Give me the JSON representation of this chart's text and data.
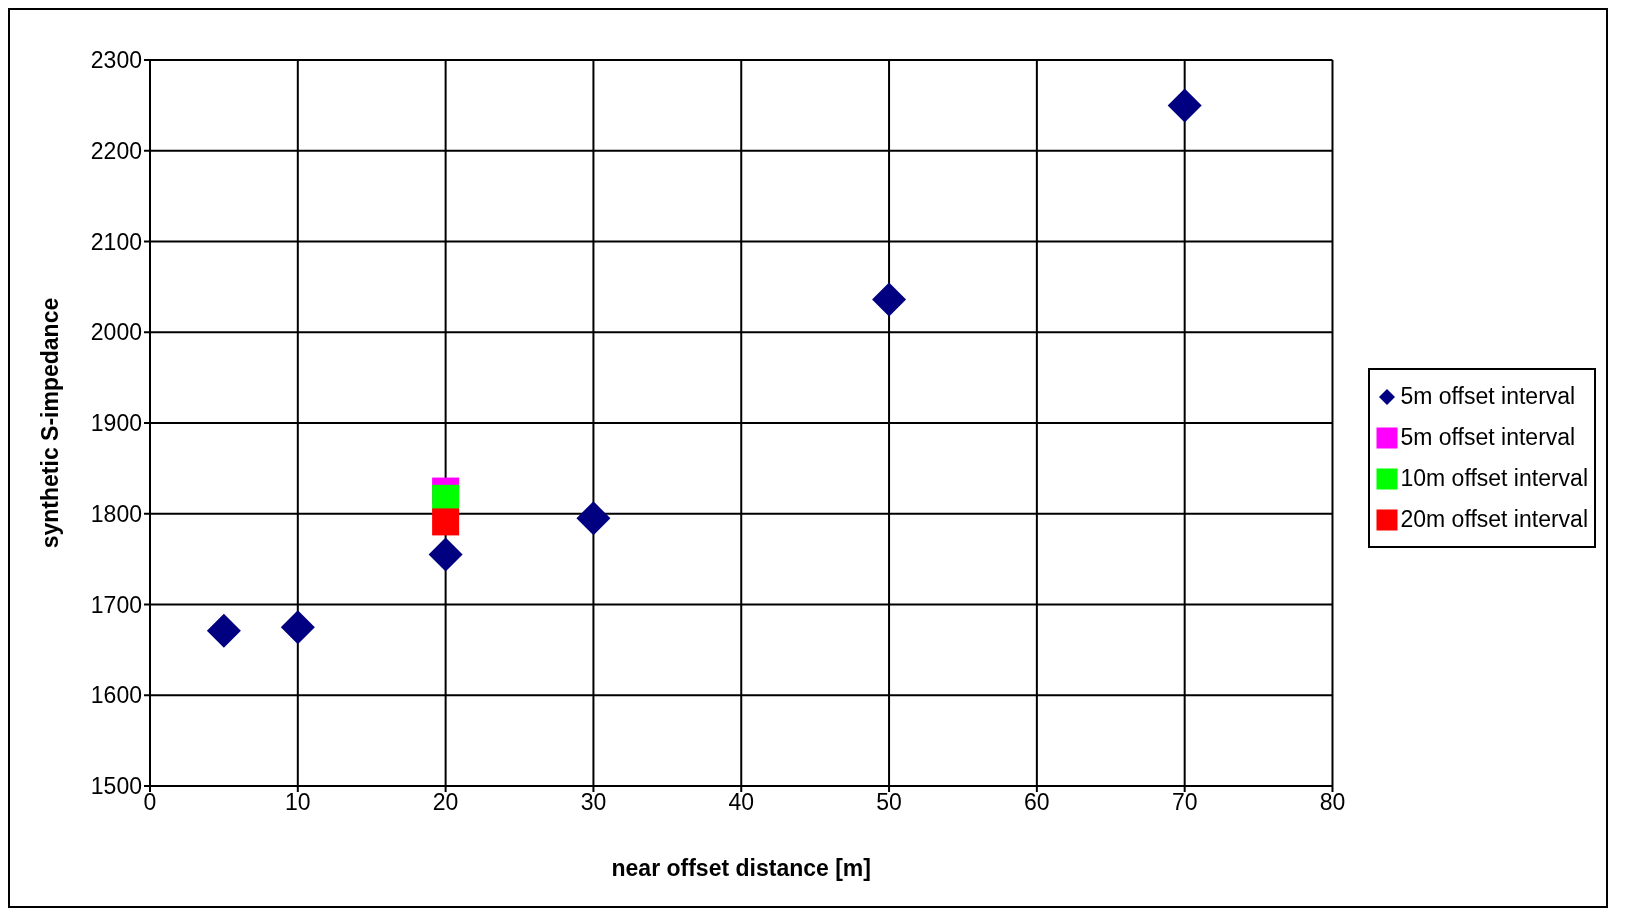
{
  "chart_data": {
    "type": "scatter",
    "xlabel": "near offset distance [m]",
    "ylabel": "synthetic S-impedance",
    "xlim": [
      0,
      80
    ],
    "xticks": [
      0,
      10,
      20,
      30,
      40,
      50,
      60,
      70,
      80
    ],
    "ylim": [
      1500,
      2300
    ],
    "yticks": [
      1500,
      1600,
      1700,
      1800,
      1900,
      2000,
      2100,
      2200,
      2300
    ],
    "grid": true,
    "legend": "right",
    "series": [
      {
        "name": "5m offset interval",
        "color": "#000080",
        "marker": "diamond",
        "x": [
          5,
          10,
          20,
          30,
          50,
          70
        ],
        "values": [
          1671,
          1675,
          1755,
          1795,
          2036,
          2250
        ]
      },
      {
        "name": "5m offset interval",
        "color": "#ff00ff",
        "marker": "square",
        "x": [
          20
        ],
        "values": [
          1825
        ]
      },
      {
        "name": "10m offset interval",
        "color": "#00ff00",
        "marker": "square",
        "x": [
          20
        ],
        "values": [
          1817
        ]
      },
      {
        "name": "20m offset interval",
        "color": "#ff0000",
        "marker": "square",
        "x": [
          20
        ],
        "values": [
          1791
        ]
      }
    ]
  }
}
